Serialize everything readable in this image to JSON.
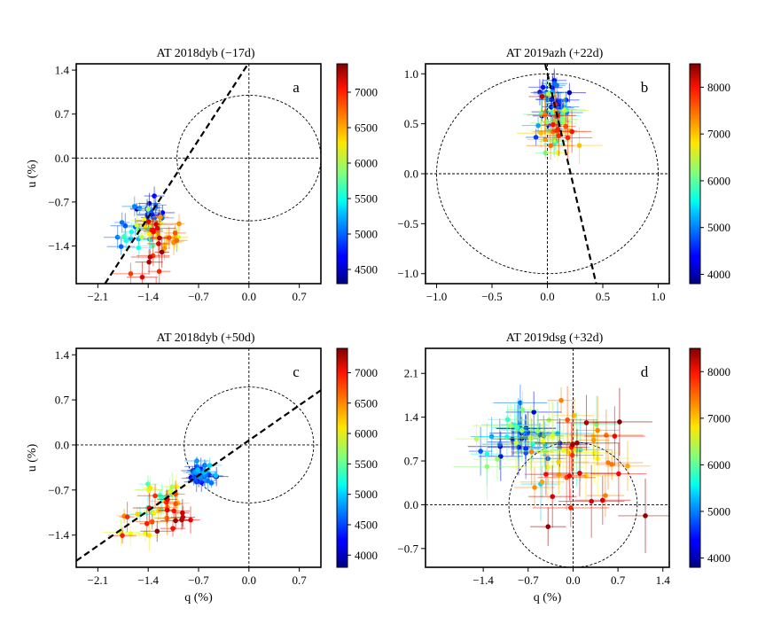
{
  "chart_data": [
    {
      "type": "scatter",
      "title": "AT 2018dyb   (−17d)",
      "panel_label": "a",
      "xlabel": "",
      "ylabel": "u (%)",
      "xlim": [
        -2.4,
        1.0
      ],
      "ylim": [
        -2.0,
        1.5
      ],
      "xticks": [
        -2.1,
        -1.4,
        -0.7,
        0.0,
        0.7
      ],
      "yticks": [
        -1.4,
        -0.7,
        0.0,
        0.7,
        1.4
      ],
      "circle_radius": 1.0,
      "dominant_axis": {
        "x1": -2.0,
        "y1": -2.0,
        "x2": 0.0,
        "y2": 1.52
      },
      "colorbar": {
        "min": 4300,
        "max": 7400,
        "ticks": [
          4500,
          5000,
          5500,
          6000,
          6500,
          7000
        ]
      },
      "clusters": [
        {
          "cx": -1.35,
          "cy": -0.85,
          "sx": 0.12,
          "sy": 0.15,
          "n": 18,
          "c0": 4350,
          "c1": 5100,
          "err": 0.12
        },
        {
          "cx": -1.6,
          "cy": -1.2,
          "sx": 0.18,
          "sy": 0.12,
          "n": 16,
          "c0": 4900,
          "c1": 5700,
          "err": 0.14
        },
        {
          "cx": -1.3,
          "cy": -1.15,
          "sx": 0.15,
          "sy": 0.12,
          "n": 14,
          "c0": 5600,
          "c1": 6600,
          "err": 0.15
        },
        {
          "cx": -1.1,
          "cy": -1.25,
          "sx": 0.08,
          "sy": 0.1,
          "n": 10,
          "c0": 6300,
          "c1": 6800,
          "err": 0.15
        },
        {
          "cx": -1.35,
          "cy": -1.55,
          "sx": 0.1,
          "sy": 0.28,
          "n": 16,
          "c0": 6800,
          "c1": 7400,
          "err": 0.18
        }
      ]
    },
    {
      "type": "scatter",
      "title": "AT 2019azh   (+22d)",
      "panel_label": "b",
      "xlabel": "",
      "ylabel": "",
      "xlim": [
        -1.1,
        1.1
      ],
      "ylim": [
        -1.1,
        1.1
      ],
      "xticks": [
        -1.0,
        -0.5,
        0.0,
        0.5,
        1.0
      ],
      "yticks": [
        -1.0,
        -0.5,
        0.0,
        0.5,
        1.0
      ],
      "circle_radius": 1.0,
      "dominant_axis": {
        "x1": -0.02,
        "y1": 1.1,
        "x2": 0.44,
        "y2": -1.1
      },
      "colorbar": {
        "min": 3800,
        "max": 8500,
        "ticks": [
          4000,
          5000,
          6000,
          7000,
          8000
        ]
      },
      "clusters": [
        {
          "cx": 0.05,
          "cy": 0.7,
          "sx": 0.06,
          "sy": 0.12,
          "n": 34,
          "c0": 3900,
          "c1": 5200,
          "err": 0.1
        },
        {
          "cx": 0.08,
          "cy": 0.5,
          "sx": 0.08,
          "sy": 0.12,
          "n": 20,
          "c0": 5300,
          "c1": 6500,
          "err": 0.12
        },
        {
          "cx": 0.06,
          "cy": 0.45,
          "sx": 0.1,
          "sy": 0.15,
          "n": 22,
          "c0": 6500,
          "c1": 8500,
          "err": 0.15
        }
      ]
    },
    {
      "type": "scatter",
      "title": "AT 2018dyb   (+50d)",
      "panel_label": "c",
      "xlabel": "q (%)",
      "ylabel": "u (%)",
      "xlim": [
        -2.4,
        1.0
      ],
      "ylim": [
        -1.9,
        1.5
      ],
      "xticks": [
        -2.1,
        -1.4,
        -0.7,
        0.0,
        0.7
      ],
      "yticks": [
        -1.4,
        -0.7,
        0.0,
        0.7,
        1.4
      ],
      "circle_radius": 0.9,
      "dominant_axis": {
        "x1": -2.4,
        "y1": -1.8,
        "x2": 1.0,
        "y2": 0.85
      },
      "colorbar": {
        "min": 3800,
        "max": 7400,
        "ticks": [
          4000,
          4500,
          5000,
          5500,
          6000,
          6500,
          7000
        ]
      },
      "clusters": [
        {
          "cx": -0.65,
          "cy": -0.45,
          "sx": 0.1,
          "sy": 0.08,
          "n": 32,
          "c0": 3850,
          "c1": 5000,
          "err": 0.12
        },
        {
          "cx": -1.3,
          "cy": -0.9,
          "sx": 0.2,
          "sy": 0.15,
          "n": 18,
          "c0": 5000,
          "c1": 6200,
          "err": 0.15
        },
        {
          "cx": -1.1,
          "cy": -0.95,
          "sx": 0.2,
          "sy": 0.15,
          "n": 14,
          "c0": 6200,
          "c1": 7000,
          "err": 0.18
        },
        {
          "cx": -1.5,
          "cy": -1.35,
          "sx": 0.15,
          "sy": 0.15,
          "n": 10,
          "c0": 5800,
          "c1": 7400,
          "err": 0.18
        },
        {
          "cx": -0.95,
          "cy": -1.15,
          "sx": 0.12,
          "sy": 0.1,
          "n": 6,
          "c0": 6900,
          "c1": 7400,
          "err": 0.15
        }
      ]
    },
    {
      "type": "scatter",
      "title": "AT 2019dsg   (+32d)",
      "panel_label": "d",
      "xlabel": "q (%)",
      "ylabel": "",
      "xlim": [
        -2.3,
        1.5
      ],
      "ylim": [
        -1.0,
        2.5
      ],
      "xticks": [
        -1.4,
        -0.7,
        0.0,
        0.7,
        1.4
      ],
      "yticks": [
        -0.7,
        0.0,
        0.7,
        1.4,
        2.1
      ],
      "circle_radius": 1.0,
      "dominant_axis": null,
      "colorbar": {
        "min": 3800,
        "max": 8500,
        "ticks": [
          4000,
          5000,
          6000,
          7000,
          8000
        ]
      },
      "clusters": [
        {
          "cx": -0.7,
          "cy": 1.05,
          "sx": 0.25,
          "sy": 0.2,
          "n": 30,
          "c0": 3900,
          "c1": 5200,
          "err": 0.35
        },
        {
          "cx": -0.7,
          "cy": 1.1,
          "sx": 0.4,
          "sy": 0.3,
          "n": 24,
          "c0": 5200,
          "c1": 6600,
          "err": 0.4
        },
        {
          "cx": 0.05,
          "cy": 0.75,
          "sx": 0.45,
          "sy": 0.4,
          "n": 28,
          "c0": 6600,
          "c1": 8000,
          "err": 0.4
        },
        {
          "cx": 0.3,
          "cy": 0.5,
          "sx": 0.45,
          "sy": 0.55,
          "n": 14,
          "c0": 7800,
          "c1": 8500,
          "err": 0.45
        }
      ]
    }
  ]
}
